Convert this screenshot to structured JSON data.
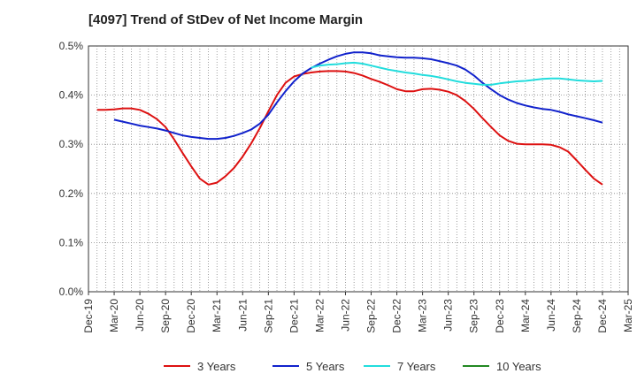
{
  "chart_data": {
    "type": "line",
    "title": "[4097]  Trend of StDev of Net Income Margin",
    "xlabel": "",
    "ylabel": "",
    "ylim": [
      0,
      0.5
    ],
    "y_unit": "%",
    "y_ticks": [
      "0.0%",
      "0.1%",
      "0.2%",
      "0.3%",
      "0.4%",
      "0.5%"
    ],
    "x_ticks": [
      "Dec-19",
      "Mar-20",
      "Jun-20",
      "Sep-20",
      "Dec-20",
      "Mar-21",
      "Jun-21",
      "Sep-21",
      "Dec-21",
      "Mar-22",
      "Jun-22",
      "Sep-22",
      "Dec-22",
      "Mar-23",
      "Jun-23",
      "Sep-23",
      "Dec-23",
      "Mar-24",
      "Jun-24",
      "Sep-24",
      "Dec-24",
      "Mar-25"
    ],
    "grid": true,
    "legend_position": "bottom",
    "series": [
      {
        "name": "3 Years",
        "color": "#dd1111",
        "values": [
          0.37,
          0.37,
          0.371,
          0.373,
          0.373,
          0.37,
          0.362,
          0.351,
          0.335,
          0.31,
          0.282,
          0.255,
          0.23,
          0.218,
          0.222,
          0.235,
          0.252,
          0.275,
          0.302,
          0.333,
          0.367,
          0.4,
          0.425,
          0.438,
          0.443,
          0.446,
          0.448,
          0.449,
          0.449,
          0.448,
          0.445,
          0.44,
          0.433,
          0.427,
          0.42,
          0.412,
          0.408,
          0.408,
          0.412,
          0.413,
          0.411,
          0.407,
          0.4,
          0.388,
          0.372,
          0.353,
          0.335,
          0.318,
          0.307,
          0.301,
          0.3,
          0.3,
          0.3,
          0.299,
          0.294,
          0.285,
          0.267,
          0.248,
          0.23,
          0.218
        ]
      },
      {
        "name": "5 Years",
        "color": "#1122cc",
        "values": [
          null,
          null,
          0.35,
          0.346,
          0.342,
          0.338,
          0.335,
          0.332,
          0.328,
          0.323,
          0.318,
          0.315,
          0.313,
          0.311,
          0.311,
          0.313,
          0.317,
          0.323,
          0.33,
          0.342,
          0.36,
          0.385,
          0.408,
          0.428,
          0.444,
          0.455,
          0.464,
          0.472,
          0.479,
          0.484,
          0.487,
          0.487,
          0.485,
          0.481,
          0.479,
          0.477,
          0.476,
          0.476,
          0.475,
          0.473,
          0.469,
          0.465,
          0.46,
          0.452,
          0.44,
          0.425,
          0.412,
          0.4,
          0.391,
          0.384,
          0.379,
          0.375,
          0.372,
          0.37,
          0.366,
          0.361,
          0.357,
          0.353,
          0.349,
          0.344
        ]
      },
      {
        "name": "7 Years",
        "color": "#22dddd",
        "values": [
          null,
          null,
          null,
          null,
          null,
          null,
          null,
          null,
          null,
          null,
          null,
          null,
          null,
          null,
          null,
          null,
          null,
          null,
          null,
          null,
          null,
          null,
          null,
          null,
          null,
          0.456,
          0.46,
          0.462,
          0.463,
          0.465,
          0.466,
          0.464,
          0.46,
          0.456,
          0.452,
          0.449,
          0.446,
          0.444,
          0.441,
          0.439,
          0.436,
          0.432,
          0.428,
          0.425,
          0.423,
          0.421,
          0.421,
          0.424,
          0.426,
          0.428,
          0.429,
          0.431,
          0.433,
          0.434,
          0.434,
          0.432,
          0.43,
          0.429,
          0.428,
          0.429
        ]
      },
      {
        "name": "10 Years",
        "color": "#228822",
        "values": []
      }
    ]
  }
}
